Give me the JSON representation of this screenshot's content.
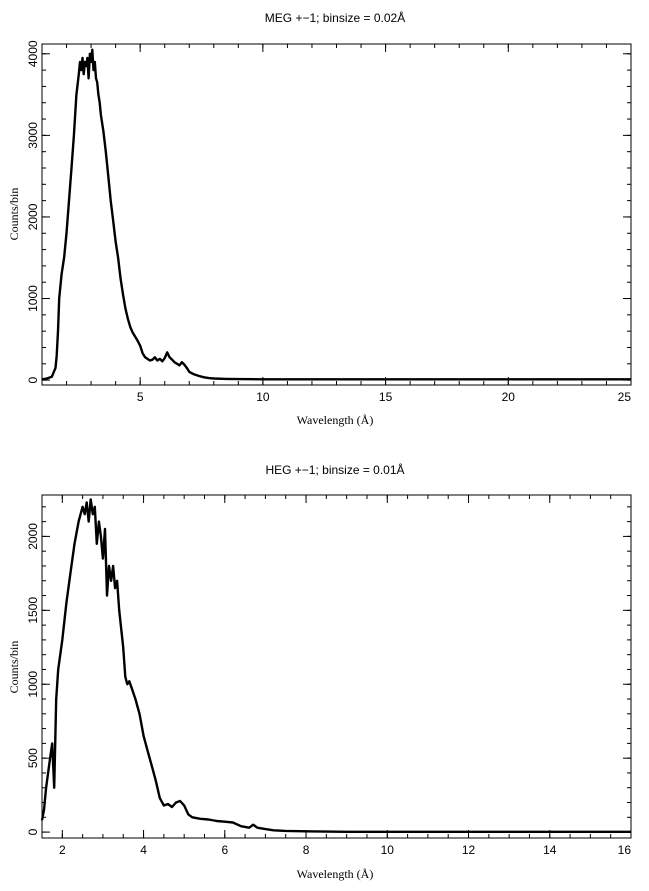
{
  "chart_data": [
    {
      "type": "line",
      "title": "MEG +−1; binsize = 0.02Å",
      "xlabel": "Wavelength (Å)",
      "ylabel": "Counts/bin",
      "xlim": [
        1.0,
        25.0
      ],
      "ylim": [
        -60,
        4120
      ],
      "xticks": [
        5,
        10,
        15,
        20,
        25
      ],
      "xtick_labels": [
        "5",
        "10",
        "15",
        "20",
        "25"
      ],
      "yticks": [
        0,
        1000,
        2000,
        3000,
        4000
      ],
      "ytick_labels": [
        "0",
        "1000",
        "2000",
        "3000",
        "4000"
      ],
      "x_minor_step": 1,
      "y_minor_step": 200,
      "grid": false,
      "series": [
        {
          "x": [
            1.0,
            1.2,
            1.4,
            1.55,
            1.6,
            1.65,
            1.7,
            1.8,
            1.9,
            2.0,
            2.1,
            2.2,
            2.3,
            2.4,
            2.5,
            2.55,
            2.6,
            2.65,
            2.7,
            2.75,
            2.8,
            2.85,
            2.9,
            2.95,
            3.0,
            3.05,
            3.1,
            3.15,
            3.2,
            3.25,
            3.3,
            3.35,
            3.4,
            3.5,
            3.6,
            3.7,
            3.8,
            3.9,
            4.0,
            4.1,
            4.2,
            4.3,
            4.4,
            4.5,
            4.6,
            4.7,
            4.8,
            4.9,
            5.0,
            5.1,
            5.2,
            5.3,
            5.4,
            5.5,
            5.6,
            5.7,
            5.8,
            5.9,
            6.0,
            6.1,
            6.2,
            6.3,
            6.4,
            6.5,
            6.6,
            6.7,
            6.8,
            6.9,
            7.0,
            7.2,
            7.4,
            7.6,
            7.8,
            8.0,
            8.5,
            9.0,
            10.0,
            12.0,
            15.0,
            20.0,
            25.0
          ],
          "y": [
            10,
            20,
            40,
            150,
            300,
            600,
            1000,
            1300,
            1500,
            1800,
            2200,
            2600,
            3000,
            3500,
            3750,
            3900,
            3800,
            3950,
            3750,
            3900,
            3850,
            3950,
            3700,
            4000,
            3900,
            4050,
            3800,
            3900,
            3700,
            3650,
            3500,
            3400,
            3250,
            3050,
            2800,
            2500,
            2200,
            1950,
            1700,
            1500,
            1250,
            1050,
            880,
            750,
            650,
            580,
            530,
            480,
            420,
            330,
            280,
            260,
            240,
            250,
            280,
            240,
            260,
            230,
            270,
            340,
            280,
            250,
            220,
            200,
            180,
            220,
            190,
            150,
            100,
            70,
            50,
            35,
            25,
            20,
            15,
            12,
            10,
            10,
            10,
            10,
            10
          ]
        }
      ]
    },
    {
      "type": "line",
      "title": "HEG +−1; binsize = 0.01Å",
      "xlabel": "Wavelength (Å)",
      "ylabel": "Counts/bin",
      "xlim": [
        1.5,
        16.0
      ],
      "ylim": [
        -40,
        2280
      ],
      "xticks": [
        2,
        4,
        6,
        8,
        10,
        12,
        14,
        16
      ],
      "xtick_labels": [
        "2",
        "4",
        "6",
        "8",
        "10",
        "12",
        "14",
        "16"
      ],
      "yticks": [
        0,
        500,
        1000,
        1500,
        2000
      ],
      "ytick_labels": [
        "0",
        "500",
        "1000",
        "1500",
        "2000"
      ],
      "x_minor_step": 0.5,
      "y_minor_step": 100,
      "grid": false,
      "series": [
        {
          "x": [
            1.5,
            1.55,
            1.6,
            1.65,
            1.7,
            1.75,
            1.8,
            1.85,
            1.9,
            2.0,
            2.1,
            2.2,
            2.3,
            2.4,
            2.5,
            2.55,
            2.6,
            2.65,
            2.7,
            2.75,
            2.8,
            2.85,
            2.9,
            2.95,
            3.0,
            3.05,
            3.1,
            3.15,
            3.2,
            3.25,
            3.3,
            3.35,
            3.4,
            3.5,
            3.55,
            3.6,
            3.65,
            3.7,
            3.8,
            3.9,
            4.0,
            4.1,
            4.2,
            4.3,
            4.4,
            4.5,
            4.6,
            4.7,
            4.8,
            4.9,
            5.0,
            5.1,
            5.2,
            5.4,
            5.6,
            5.8,
            6.0,
            6.2,
            6.4,
            6.6,
            6.7,
            6.8,
            7.0,
            7.2,
            7.5,
            8.0,
            8.5,
            9.0,
            10.0,
            12.0,
            14.0,
            16.0
          ],
          "y": [
            80,
            150,
            300,
            400,
            500,
            600,
            300,
            900,
            1100,
            1300,
            1550,
            1750,
            1950,
            2100,
            2200,
            2150,
            2230,
            2100,
            2250,
            2150,
            2200,
            1950,
            2100,
            2000,
            1850,
            2050,
            1600,
            1800,
            1700,
            1800,
            1650,
            1700,
            1500,
            1250,
            1050,
            1000,
            1020,
            980,
            900,
            800,
            650,
            550,
            450,
            350,
            230,
            180,
            190,
            170,
            200,
            210,
            180,
            120,
            100,
            90,
            85,
            75,
            70,
            65,
            40,
            30,
            50,
            30,
            20,
            12,
            8,
            5,
            3,
            2,
            2,
            2,
            2,
            2
          ]
        }
      ]
    }
  ]
}
